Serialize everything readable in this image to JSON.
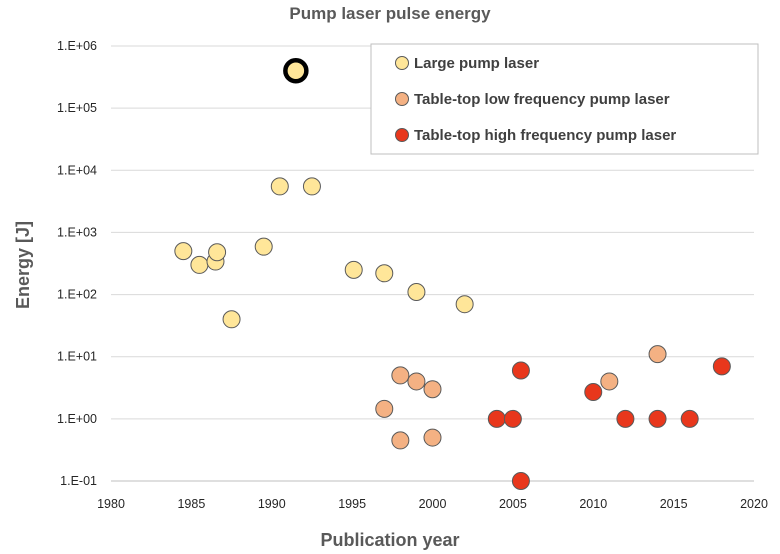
{
  "chart_data": {
    "type": "scatter",
    "title": "Pump laser  pulse energy",
    "xlabel": "Publication year",
    "ylabel": "Energy [J]",
    "xlim": [
      1980,
      2020
    ],
    "xticks": [
      1980,
      1985,
      1990,
      1995,
      2000,
      2005,
      2010,
      2015,
      2020
    ],
    "ylim": [
      0.1,
      1000000
    ],
    "yscale": "log",
    "yticks": [
      {
        "value": 0.1,
        "label": "1.E-01"
      },
      {
        "value": 1,
        "label": "1.E+00"
      },
      {
        "value": 10,
        "label": "1.E+01"
      },
      {
        "value": 100,
        "label": "1.E+02"
      },
      {
        "value": 1000,
        "label": "1.E+03"
      },
      {
        "value": 10000,
        "label": "1.E+04"
      },
      {
        "value": 100000,
        "label": "1.E+05"
      },
      {
        "value": 1000000,
        "label": "1.E+06"
      }
    ],
    "grid": "horizontal",
    "legend_position": "top-right",
    "series": [
      {
        "name": "Large pump laser",
        "color": "#ffe699",
        "points": [
          {
            "x": 1984.5,
            "y": 500
          },
          {
            "x": 1985.5,
            "y": 300
          },
          {
            "x": 1986.5,
            "y": 340
          },
          {
            "x": 1986.6,
            "y": 480
          },
          {
            "x": 1987.5,
            "y": 40
          },
          {
            "x": 1989.5,
            "y": 590
          },
          {
            "x": 1990.5,
            "y": 5500
          },
          {
            "x": 1991.5,
            "y": 400000,
            "highlight": true
          },
          {
            "x": 1992.5,
            "y": 5500
          },
          {
            "x": 1995.1,
            "y": 250
          },
          {
            "x": 1997.0,
            "y": 220
          },
          {
            "x": 1999.0,
            "y": 110
          },
          {
            "x": 2002.0,
            "y": 70
          }
        ]
      },
      {
        "name": "Table-top low frequency pump laser",
        "color": "#f4b183",
        "points": [
          {
            "x": 1997.0,
            "y": 1.45
          },
          {
            "x": 1998.0,
            "y": 5.0
          },
          {
            "x": 1998.0,
            "y": 0.45
          },
          {
            "x": 1999.0,
            "y": 4.0
          },
          {
            "x": 2000.0,
            "y": 3.0
          },
          {
            "x": 2000.0,
            "y": 0.5
          },
          {
            "x": 2011.0,
            "y": 4.0
          },
          {
            "x": 2014.0,
            "y": 11.0
          }
        ]
      },
      {
        "name": "Table-top high frequency pump laser",
        "color": "#e8371c",
        "points": [
          {
            "x": 2004.0,
            "y": 1.0
          },
          {
            "x": 2005.0,
            "y": 1.0
          },
          {
            "x": 2005.5,
            "y": 6.0
          },
          {
            "x": 2005.5,
            "y": 0.1
          },
          {
            "x": 2010.0,
            "y": 2.7
          },
          {
            "x": 2012.0,
            "y": 1.0
          },
          {
            "x": 2014.0,
            "y": 1.0
          },
          {
            "x": 2016.0,
            "y": 1.0
          },
          {
            "x": 2018.0,
            "y": 7.0
          }
        ]
      }
    ]
  }
}
